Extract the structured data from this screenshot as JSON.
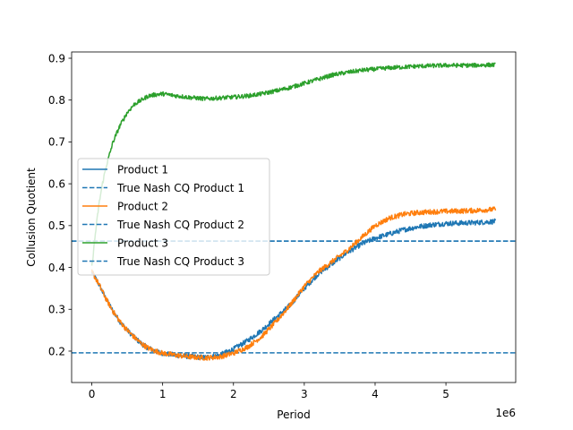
{
  "chart_data": {
    "type": "line",
    "title": "",
    "xlabel": "Period",
    "ylabel": "Collusion Quotient",
    "x_offset_label": "1e6",
    "xlim": [
      -0.285,
      5.985
    ],
    "ylim": [
      0.125,
      0.915
    ],
    "x_ticks": [
      0,
      1,
      2,
      3,
      4,
      5
    ],
    "x_tick_labels": [
      "0",
      "1",
      "2",
      "3",
      "4",
      "5"
    ],
    "y_ticks": [
      0.2,
      0.3,
      0.4,
      0.5,
      0.6,
      0.7,
      0.8,
      0.9
    ],
    "y_tick_labels": [
      "0.2",
      "0.3",
      "0.4",
      "0.5",
      "0.6",
      "0.7",
      "0.8",
      "0.9"
    ],
    "grid": false,
    "legend_position": "center-left",
    "series": [
      {
        "name": "Product 1",
        "color": "#1f77b4",
        "style": "solid",
        "noise": 0.006,
        "x": [
          0,
          0.1,
          0.2,
          0.3,
          0.4,
          0.5,
          0.6,
          0.7,
          0.8,
          0.9,
          1.0,
          1.2,
          1.4,
          1.6,
          1.8,
          2.0,
          2.2,
          2.4,
          2.6,
          2.8,
          3.0,
          3.2,
          3.4,
          3.6,
          3.8,
          4.0,
          4.2,
          4.4,
          4.6,
          4.8,
          5.0,
          5.2,
          5.4,
          5.6,
          5.7
        ],
        "y": [
          0.39,
          0.36,
          0.325,
          0.295,
          0.27,
          0.25,
          0.233,
          0.218,
          0.207,
          0.2,
          0.195,
          0.19,
          0.187,
          0.185,
          0.19,
          0.205,
          0.225,
          0.25,
          0.28,
          0.31,
          0.35,
          0.385,
          0.41,
          0.435,
          0.455,
          0.47,
          0.48,
          0.49,
          0.497,
          0.502,
          0.505,
          0.506,
          0.507,
          0.509,
          0.51
        ]
      },
      {
        "name": "True Nash CQ Product 1",
        "color": "#1f77b4",
        "style": "dashed",
        "value": 0.196
      },
      {
        "name": "Product 2",
        "color": "#ff7f0e",
        "style": "solid",
        "noise": 0.006,
        "x": [
          0,
          0.1,
          0.2,
          0.3,
          0.4,
          0.5,
          0.6,
          0.7,
          0.8,
          0.9,
          1.0,
          1.2,
          1.4,
          1.6,
          1.8,
          2.0,
          2.2,
          2.4,
          2.6,
          2.8,
          3.0,
          3.2,
          3.4,
          3.6,
          3.8,
          4.0,
          4.2,
          4.4,
          4.6,
          4.8,
          5.0,
          5.2,
          5.4,
          5.6,
          5.7
        ],
        "y": [
          0.39,
          0.36,
          0.325,
          0.295,
          0.27,
          0.25,
          0.233,
          0.218,
          0.207,
          0.2,
          0.195,
          0.19,
          0.186,
          0.184,
          0.186,
          0.195,
          0.21,
          0.235,
          0.27,
          0.31,
          0.355,
          0.39,
          0.415,
          0.44,
          0.47,
          0.5,
          0.518,
          0.527,
          0.531,
          0.533,
          0.534,
          0.535,
          0.536,
          0.538,
          0.539
        ]
      },
      {
        "name": "True Nash CQ Product 2",
        "color": "#1f77b4",
        "style": "dashed",
        "value": 0.463
      },
      {
        "name": "Product 3",
        "color": "#2ca02c",
        "style": "solid",
        "noise": 0.005,
        "x": [
          0,
          0.05,
          0.1,
          0.15,
          0.2,
          0.3,
          0.4,
          0.5,
          0.6,
          0.7,
          0.8,
          0.9,
          1.0,
          1.2,
          1.4,
          1.6,
          1.8,
          2.0,
          2.2,
          2.4,
          2.6,
          2.8,
          3.0,
          3.2,
          3.4,
          3.6,
          3.8,
          4.0,
          4.2,
          4.4,
          4.6,
          4.8,
          5.0,
          5.2,
          5.4,
          5.6,
          5.7
        ],
        "y": [
          0.4,
          0.48,
          0.55,
          0.6,
          0.64,
          0.7,
          0.74,
          0.77,
          0.79,
          0.8,
          0.81,
          0.813,
          0.815,
          0.81,
          0.806,
          0.803,
          0.805,
          0.807,
          0.81,
          0.815,
          0.822,
          0.83,
          0.84,
          0.85,
          0.86,
          0.866,
          0.871,
          0.874,
          0.877,
          0.879,
          0.881,
          0.882,
          0.883,
          0.883,
          0.883,
          0.884,
          0.884
        ]
      },
      {
        "name": "True Nash CQ Product 3",
        "color": "#1f77b4",
        "style": "dashed",
        "value": 0.463
      }
    ]
  }
}
